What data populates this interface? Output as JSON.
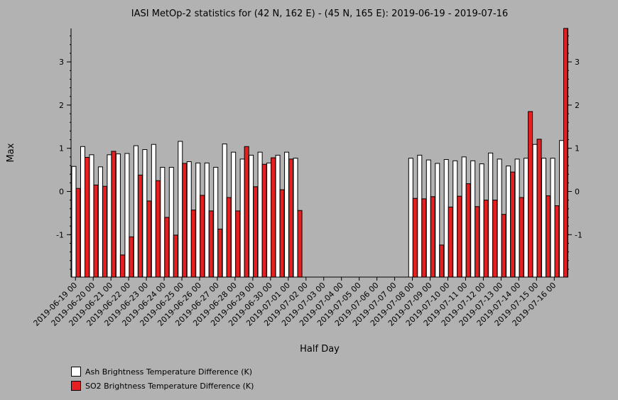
{
  "chart_data": {
    "type": "bar",
    "title": "IASI MetOp-2 statistics for (42 N, 162 E) - (45 N, 165 E): 2019-06-19 - 2019-07-16",
    "xlabel": "Half Day",
    "ylabel": "Max",
    "ylim": [
      -2.0,
      3.8
    ],
    "yticks": [
      -1,
      0,
      1,
      2,
      3
    ],
    "grid": false,
    "legend_position": "bottom-left",
    "categories": [
      "2019-06-19 00",
      "2019-06-19 12",
      "2019-06-20 00",
      "2019-06-20 12",
      "2019-06-21 00",
      "2019-06-21 12",
      "2019-06-22 00",
      "2019-06-22 12",
      "2019-06-23 00",
      "2019-06-23 12",
      "2019-06-24 00",
      "2019-06-24 12",
      "2019-06-25 00",
      "2019-06-25 12",
      "2019-06-26 00",
      "2019-06-26 12",
      "2019-06-27 00",
      "2019-06-27 12",
      "2019-06-28 00",
      "2019-06-28 12",
      "2019-06-29 00",
      "2019-06-29 12",
      "2019-06-30 00",
      "2019-06-30 12",
      "2019-07-01 00",
      "2019-07-01 12",
      "2019-07-02 00",
      "2019-07-02 12",
      "2019-07-03 00",
      "2019-07-03 12",
      "2019-07-04 00",
      "2019-07-04 12",
      "2019-07-05 00",
      "2019-07-05 12",
      "2019-07-06 00",
      "2019-07-06 12",
      "2019-07-07 00",
      "2019-07-07 12",
      "2019-07-08 00",
      "2019-07-08 12",
      "2019-07-09 00",
      "2019-07-09 12",
      "2019-07-10 00",
      "2019-07-10 12",
      "2019-07-11 00",
      "2019-07-11 12",
      "2019-07-12 00",
      "2019-07-12 12",
      "2019-07-13 00",
      "2019-07-13 12",
      "2019-07-14 00",
      "2019-07-14 12",
      "2019-07-15 00",
      "2019-07-15 12",
      "2019-07-16 00",
      "2019-07-16 12"
    ],
    "tick_labels": [
      "2019-06-19 00",
      "2019-06-20 00",
      "2019-06-21 00",
      "2019-06-22 00",
      "2019-06-23 00",
      "2019-06-24 00",
      "2019-06-25 00",
      "2019-06-26 00",
      "2019-06-27 00",
      "2019-06-28 00",
      "2019-06-29 00",
      "2019-06-30 00",
      "2019-07-01 00",
      "2019-07-02 00",
      "2019-07-03 00",
      "2019-07-04 00",
      "2019-07-05 00",
      "2019-07-06 00",
      "2019-07-07 00",
      "2019-07-08 00",
      "2019-07-09 00",
      "2019-07-10 00",
      "2019-07-11 00",
      "2019-07-12 00",
      "2019-07-13 00",
      "2019-07-14 00",
      "2019-07-15 00",
      "2019-07-16 00"
    ],
    "series": [
      {
        "name": "Ash Brightness Temperature Difference (K)",
        "color": "#ffffff",
        "values": [
          0.58,
          1.04,
          0.85,
          0.57,
          0.85,
          0.87,
          0.88,
          1.06,
          0.97,
          1.09,
          0.56,
          0.56,
          1.16,
          0.69,
          0.66,
          0.66,
          0.56,
          1.1,
          0.91,
          0.75,
          0.84,
          0.91,
          0.66,
          0.84,
          0.91,
          0.77,
          null,
          null,
          null,
          null,
          null,
          null,
          null,
          null,
          null,
          null,
          null,
          null,
          0.77,
          0.84,
          0.73,
          0.65,
          0.74,
          0.71,
          0.8,
          0.71,
          0.64,
          0.89,
          0.75,
          0.59,
          0.75,
          0.77,
          1.09,
          0.77,
          0.77,
          1.18
        ]
      },
      {
        "name": "SO2 Brightness Temperature Difference (K)",
        "color": "#e62020",
        "values": [
          0.07,
          0.79,
          0.15,
          0.12,
          0.93,
          -1.47,
          -1.05,
          0.38,
          -0.22,
          0.25,
          -0.6,
          -1.01,
          0.65,
          -0.43,
          -0.09,
          -0.45,
          -0.87,
          -0.14,
          -0.45,
          1.04,
          0.11,
          0.63,
          0.78,
          0.04,
          0.75,
          -0.44,
          null,
          null,
          null,
          null,
          null,
          null,
          null,
          null,
          null,
          null,
          null,
          null,
          -0.16,
          -0.17,
          -0.12,
          -1.24,
          -0.36,
          -0.11,
          0.18,
          -0.35,
          -0.2,
          -0.2,
          -0.53,
          0.45,
          -0.14,
          1.85,
          1.21,
          -0.1,
          -0.33,
          3.8
        ]
      }
    ]
  }
}
